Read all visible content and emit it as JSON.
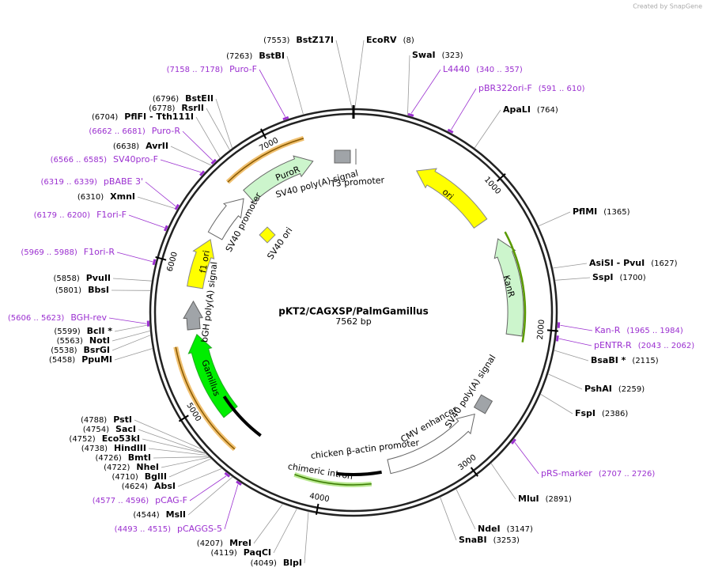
{
  "header": {
    "credit": "Created by SnapGene"
  },
  "map": {
    "title": "pKT2/CAGXSP/PalmGamillus",
    "size": "7562 bp",
    "ticks": [
      1000,
      2000,
      3000,
      4000,
      5000,
      6000,
      7000
    ]
  },
  "enzymes": [
    {
      "name": "BstZ17I",
      "pos": "(7553)"
    },
    {
      "name": "BstBI",
      "pos": "(7263)"
    },
    {
      "name": "BstEII",
      "pos": "(6796)"
    },
    {
      "name": "RsrII",
      "pos": "(6778)"
    },
    {
      "name": "PflFI - Tth111I",
      "pos": "(6704)"
    },
    {
      "name": "AvrII",
      "pos": "(6638)"
    },
    {
      "name": "XmnI",
      "pos": "(6310)"
    },
    {
      "name": "PvuII",
      "pos": "(5858)"
    },
    {
      "name": "BbsI",
      "pos": "(5801)"
    },
    {
      "name": "BclI *",
      "pos": "(5599)"
    },
    {
      "name": "NotI",
      "pos": "(5563)"
    },
    {
      "name": "BsrGI",
      "pos": "(5538)"
    },
    {
      "name": "PpuMI",
      "pos": "(5458)"
    },
    {
      "name": "PstI",
      "pos": "(4788)"
    },
    {
      "name": "SacI",
      "pos": "(4754)"
    },
    {
      "name": "Eco53kI",
      "pos": "(4752)"
    },
    {
      "name": "HindIII",
      "pos": "(4738)"
    },
    {
      "name": "BmtI",
      "pos": "(4726)"
    },
    {
      "name": "NheI",
      "pos": "(4722)"
    },
    {
      "name": "BglII",
      "pos": "(4710)"
    },
    {
      "name": "AbsI",
      "pos": "(4624)"
    },
    {
      "name": "MslI",
      "pos": "(4544)"
    },
    {
      "name": "MreI",
      "pos": "(4207)"
    },
    {
      "name": "PaqCI",
      "pos": "(4119)"
    },
    {
      "name": "BlpI",
      "pos": "(4049)"
    },
    {
      "name": "EcoRV",
      "pos": "(8)"
    },
    {
      "name": "SwaI",
      "pos": "(323)"
    },
    {
      "name": "ApaLI",
      "pos": "(764)"
    },
    {
      "name": "PflMI",
      "pos": "(1365)"
    },
    {
      "name": "AsiSI - PvuI",
      "pos": "(1627)"
    },
    {
      "name": "SspI",
      "pos": "(1700)"
    },
    {
      "name": "BsaBI *",
      "pos": "(2115)"
    },
    {
      "name": "PshAI",
      "pos": "(2259)"
    },
    {
      "name": "FspI",
      "pos": "(2386)"
    },
    {
      "name": "MluI",
      "pos": "(2891)"
    },
    {
      "name": "NdeI",
      "pos": "(3147)"
    },
    {
      "name": "SnaBI",
      "pos": "(3253)"
    }
  ],
  "primers": [
    {
      "name": "Puro-F",
      "range": "(7158 .. 7178)"
    },
    {
      "name": "Puro-R",
      "range": "(6662 .. 6681)"
    },
    {
      "name": "SV40pro-F",
      "range": "(6566 .. 6585)"
    },
    {
      "name": "pBABE 3'",
      "range": "(6319 .. 6339)"
    },
    {
      "name": "F1ori-F",
      "range": "(6179 .. 6200)"
    },
    {
      "name": "F1ori-R",
      "range": "(5969 .. 5988)"
    },
    {
      "name": "BGH-rev",
      "range": "(5606 .. 5623)"
    },
    {
      "name": "pCAG-F",
      "range": "(4577 .. 4596)"
    },
    {
      "name": "pCAGGS-5",
      "range": "(4493 .. 4515)"
    },
    {
      "name": "L4440",
      "range": "(340 .. 357)"
    },
    {
      "name": "pBR322ori-F",
      "range": "(591 .. 610)"
    },
    {
      "name": "Kan-R",
      "range": "(1965 .. 1984)"
    },
    {
      "name": "pENTR-R",
      "range": "(2043 .. 2062)"
    },
    {
      "name": "pRS-marker",
      "range": "(2707 .. 2726)"
    }
  ],
  "features": [
    "ori",
    "KanR",
    "PuroR",
    "SV40 poly(A) signal",
    "T3 promoter",
    "SV40 promoter",
    "f1 ori",
    "SV40 ori",
    "bGH poly(A) signal",
    "Gamillus",
    "CMV enhancer",
    "SV40 poly(A) signal",
    "chicken β-actin promoter",
    "chimeric intron"
  ]
}
